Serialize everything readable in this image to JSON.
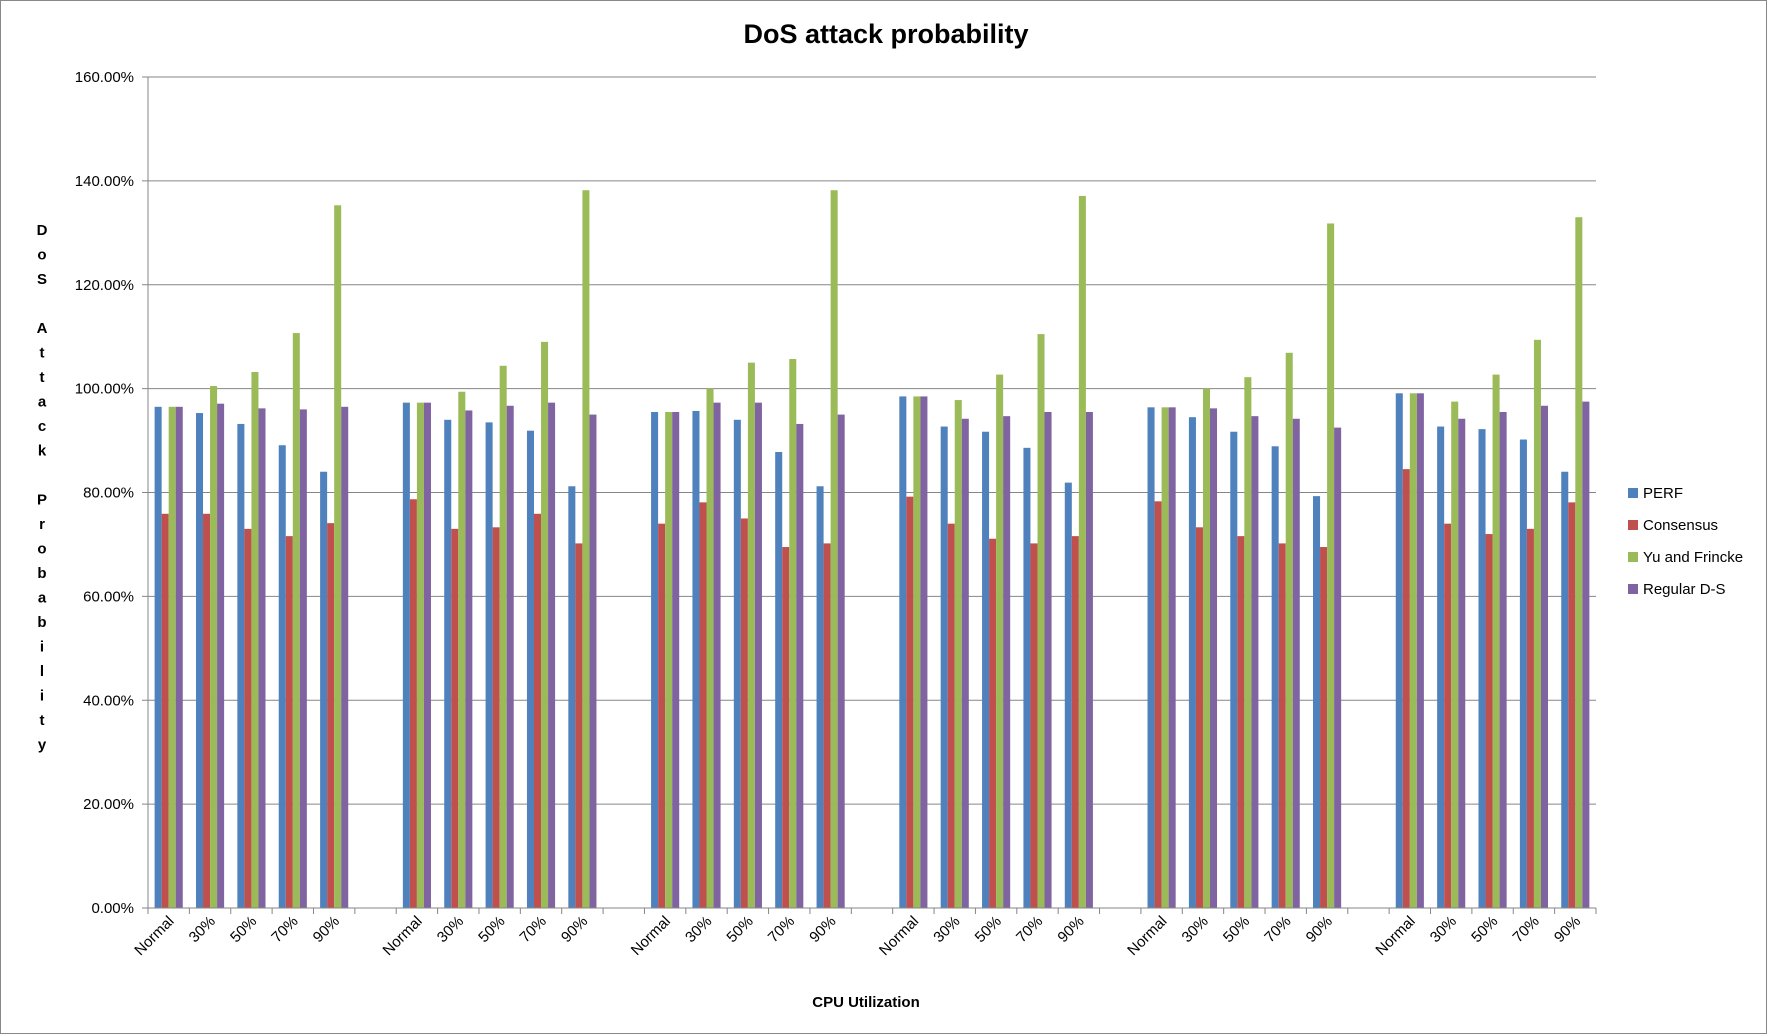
{
  "chart_data": {
    "type": "bar",
    "title": "DoS attack probability",
    "xlabel": "CPU Utilization",
    "ylabel": "DoS Attack Probability",
    "ylim": [
      0,
      1.6
    ],
    "yticks": [
      "0.00%",
      "20.00%",
      "40.00%",
      "60.00%",
      "80.00%",
      "100.00%",
      "120.00%",
      "140.00%",
      "160.00%"
    ],
    "grid": true,
    "legend_position": "right",
    "groups": 6,
    "categories": [
      "Normal",
      "30%",
      "50%",
      "70%",
      "90%",
      "",
      "Normal",
      "30%",
      "50%",
      "70%",
      "90%",
      "",
      "Normal",
      "30%",
      "50%",
      "70%",
      "90%",
      "",
      "Normal",
      "30%",
      "50%",
      "70%",
      "90%",
      "",
      "Normal",
      "30%",
      "50%",
      "70%",
      "90%",
      "",
      "Normal",
      "30%",
      "50%",
      "70%",
      "90%"
    ],
    "series": [
      {
        "name": "PERF",
        "color": "#4F81BD",
        "values": [
          0.965,
          0.953,
          0.932,
          0.891,
          0.84,
          null,
          0.973,
          0.94,
          0.935,
          0.919,
          0.812,
          null,
          0.955,
          0.957,
          0.94,
          0.878,
          0.812,
          null,
          0.985,
          0.927,
          0.917,
          0.886,
          0.819,
          null,
          0.964,
          0.945,
          0.917,
          0.889,
          0.793,
          null,
          0.991,
          0.927,
          0.922,
          0.902,
          0.84
        ]
      },
      {
        "name": "Consensus",
        "color": "#C0504D",
        "values": [
          0.759,
          0.759,
          0.73,
          0.716,
          0.741,
          null,
          0.787,
          0.73,
          0.733,
          0.759,
          0.702,
          null,
          0.74,
          0.781,
          0.75,
          0.695,
          0.702,
          null,
          0.792,
          0.74,
          0.711,
          0.702,
          0.716,
          null,
          0.783,
          0.733,
          0.716,
          0.702,
          0.695,
          null,
          0.845,
          0.74,
          0.72,
          0.73,
          0.781
        ]
      },
      {
        "name": "Yu and Frincke",
        "color": "#9BBB59",
        "values": [
          0.965,
          1.005,
          1.032,
          1.107,
          1.353,
          null,
          0.973,
          0.994,
          1.044,
          1.09,
          1.382,
          null,
          0.955,
          1.0,
          1.05,
          1.057,
          1.382,
          null,
          0.985,
          0.978,
          1.027,
          1.105,
          1.371,
          null,
          0.964,
          1.0,
          1.022,
          1.069,
          1.318,
          null,
          0.991,
          0.975,
          1.027,
          1.094,
          1.33
        ]
      },
      {
        "name": "Regular D-S",
        "color": "#8064A2",
        "values": [
          0.965,
          0.971,
          0.962,
          0.96,
          0.965,
          null,
          0.973,
          0.958,
          0.967,
          0.973,
          0.95,
          null,
          0.955,
          0.973,
          0.973,
          0.932,
          0.95,
          null,
          0.985,
          0.942,
          0.947,
          0.955,
          0.955,
          null,
          0.964,
          0.962,
          0.947,
          0.942,
          0.925,
          null,
          0.991,
          0.942,
          0.955,
          0.967,
          0.975
        ]
      }
    ]
  }
}
